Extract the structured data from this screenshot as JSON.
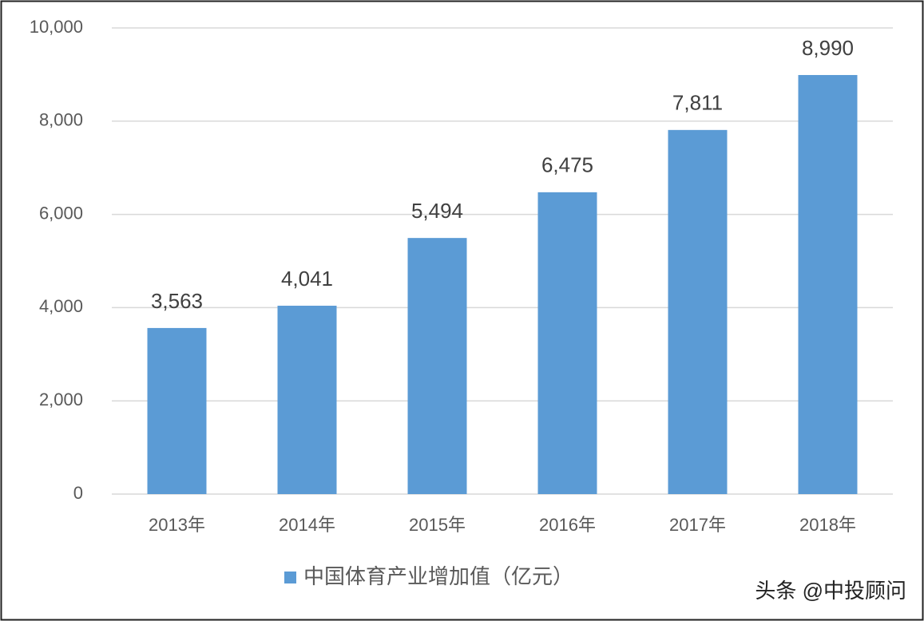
{
  "chart_data": {
    "type": "bar",
    "categories": [
      "2013年",
      "2014年",
      "2015年",
      "2016年",
      "2017年",
      "2018年"
    ],
    "series": [
      {
        "name": "中国体育产业增加值（亿元）",
        "color": "#5b9bd5",
        "values": [
          3563,
          4041,
          5494,
          6475,
          7811,
          8990
        ],
        "value_labels": [
          "3,563",
          "4,041",
          "5,494",
          "6,475",
          "7,811",
          "8,990"
        ]
      }
    ],
    "ylim": [
      0,
      10000
    ],
    "yticks": [
      0,
      {
        "value": 2000,
        "label": "2,000"
      },
      {
        "value": 4000,
        "label": "4,000"
      },
      {
        "value": 6000,
        "label": "6,000"
      },
      {
        "value": 8000,
        "label": "8,000"
      },
      {
        "value": 10000,
        "label": "10,000"
      }
    ],
    "grid": true,
    "legend": "bottom",
    "watermark": "头条 @中投顾问"
  }
}
